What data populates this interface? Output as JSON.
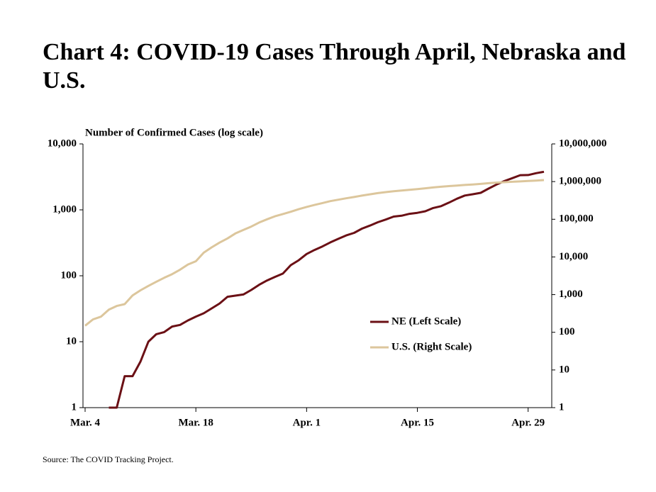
{
  "chart_data": {
    "type": "line",
    "title": "Chart 4: COVID-19 Cases Through April, Nebraska and U.S.",
    "ylabel": "Number of Confirmed Cases (log scale)",
    "source": "Source: The COVID Tracking Project.",
    "log_scale": true,
    "legend": "center right",
    "categories": [
      "Mar. 4",
      null,
      null,
      null,
      null,
      null,
      null,
      null,
      null,
      null,
      null,
      null,
      null,
      null,
      "Mar. 18",
      null,
      null,
      null,
      null,
      null,
      null,
      null,
      null,
      null,
      null,
      null,
      null,
      null,
      "Apr. 1",
      null,
      null,
      null,
      null,
      null,
      null,
      null,
      null,
      null,
      null,
      null,
      null,
      null,
      "Apr. 15",
      null,
      null,
      null,
      null,
      null,
      null,
      null,
      null,
      null,
      null,
      null,
      null,
      null,
      "Apr. 29",
      null,
      null
    ],
    "series": [
      {
        "name": "NE (Left Scale)",
        "color": "#6b1015",
        "axis": "y",
        "values": [
          null,
          null,
          null,
          1,
          1,
          3,
          3,
          5,
          10,
          13,
          14,
          17,
          18,
          21,
          24,
          27,
          32,
          38,
          48,
          50,
          52,
          61,
          73,
          85,
          96,
          108,
          145,
          172,
          214,
          246,
          279,
          321,
          363,
          409,
          447,
          519,
          577,
          648,
          713,
          791,
          814,
          871,
          901,
          952,
          1066,
          1138,
          1287,
          1474,
          1648,
          1722,
          1813,
          2102,
          2421,
          2732,
          3028,
          3358,
          3374,
          3600,
          3784
        ]
      },
      {
        "name": "U.S. (Right Scale)",
        "color": "#dcc69c",
        "axis": "y2",
        "values": [
          150,
          220,
          260,
          400,
          500,
          560,
          950,
          1300,
          1700,
          2200,
          2800,
          3500,
          4600,
          6300,
          7700,
          13000,
          18000,
          24000,
          31000,
          42000,
          52000,
          64000,
          82000,
          100000,
          120000,
          138000,
          158000,
          185000,
          212000,
          240000,
          270000,
          303000,
          330000,
          360000,
          390000,
          425000,
          460000,
          495000,
          525000,
          555000,
          580000,
          605000,
          633000,
          665000,
          700000,
          730000,
          760000,
          785000,
          812000,
          840000,
          870000,
          905000,
          940000,
          965000,
          988000,
          1010000,
          1035000,
          1065000,
          1095000
        ]
      }
    ],
    "ylim": [
      1,
      10000
    ],
    "yticks": [
      1,
      10,
      100,
      {
        "value": 1000,
        "label": "1,000"
      },
      {
        "value": 10000,
        "label": "10,000"
      }
    ],
    "y2lim": [
      1,
      10000000
    ],
    "y2ticks": [
      1,
      10,
      100,
      {
        "value": 1000,
        "label": "1,000"
      },
      {
        "value": 10000,
        "label": "10,000"
      },
      {
        "value": 100000,
        "label": "100,000"
      },
      {
        "value": 1000000,
        "label": "1,000,000"
      },
      {
        "value": 10000000,
        "label": "10,000,000"
      }
    ]
  }
}
